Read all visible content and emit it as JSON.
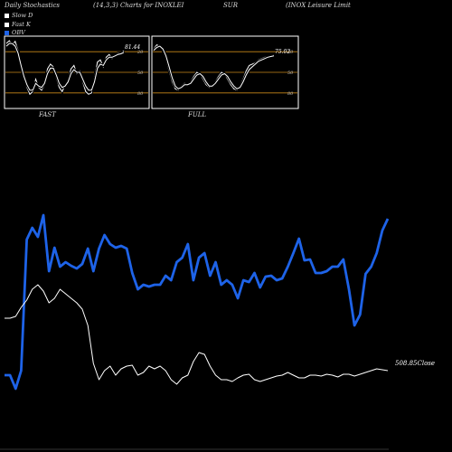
{
  "header": {
    "title": "Daily Stochastics",
    "params": "(14,3,3) Charts for INOXLEI",
    "exchange": "SUR",
    "company": "(INOX  Leisure  Limit"
  },
  "legend": [
    {
      "label": "Slow  D",
      "color": "#ffffff"
    },
    {
      "label": "Fast K",
      "color": "#ffffff"
    },
    {
      "label": "OBV",
      "color": "#1e63e8"
    }
  ],
  "colors": {
    "obv": "#1e63e8",
    "price": "#ffffff",
    "band": "#c8881a",
    "panel_border": "#ffffff"
  },
  "chart_data": [
    {
      "type": "line",
      "title": "FAST",
      "ylim": [
        0,
        100
      ],
      "levels": [
        20,
        50,
        80
      ],
      "tick_labels": [
        "80",
        "50",
        "20"
      ],
      "last_label": "81.44",
      "series": [
        {
          "values": [
            92,
            96,
            90,
            95,
            82,
            62,
            42,
            28,
            18,
            22,
            40,
            28,
            24,
            32,
            55,
            62,
            58,
            42,
            28,
            22,
            32,
            38,
            55,
            60,
            48,
            52,
            36,
            22,
            18,
            20,
            42,
            65,
            68,
            58,
            72,
            76,
            70,
            74,
            78,
            78,
            81.44
          ]
        },
        {
          "values": [
            88,
            92,
            92,
            88,
            78,
            60,
            44,
            32,
            24,
            24,
            34,
            30,
            28,
            34,
            48,
            56,
            56,
            46,
            34,
            28,
            30,
            36,
            48,
            54,
            50,
            50,
            40,
            30,
            24,
            24,
            36,
            56,
            62,
            60,
            68,
            72,
            72,
            74,
            76,
            77,
            79
          ]
        }
      ]
    },
    {
      "type": "line",
      "title": "FULL",
      "ylim": [
        0,
        100
      ],
      "levels": [
        20,
        50,
        80
      ],
      "tick_labels": [
        "80",
        "50",
        "20"
      ],
      "last_label": "75.02",
      "series": [
        {
          "values": [
            84,
            90,
            88,
            82,
            70,
            52,
            36,
            26,
            24,
            30,
            34,
            32,
            36,
            44,
            50,
            48,
            40,
            32,
            28,
            30,
            36,
            44,
            50,
            48,
            40,
            32,
            26,
            24,
            30,
            40,
            52,
            60,
            62,
            64,
            68,
            70,
            72,
            73,
            74,
            75.02
          ]
        },
        {
          "values": [
            82,
            86,
            88,
            84,
            74,
            58,
            42,
            30,
            26,
            28,
            32,
            32,
            34,
            40,
            46,
            48,
            44,
            36,
            30,
            30,
            34,
            40,
            46,
            48,
            44,
            36,
            30,
            26,
            28,
            36,
            46,
            54,
            58,
            62,
            66,
            68,
            70,
            72,
            73,
            74
          ]
        }
      ]
    },
    {
      "type": "line",
      "title": "",
      "price_label": "508.85Close",
      "series": [
        {
          "name": "OBV",
          "values": [
            85,
            85,
            70,
            90,
            235,
            248,
            238,
            262,
            200,
            226,
            205,
            210,
            206,
            203,
            208,
            225,
            200,
            225,
            240,
            230,
            226,
            228,
            225,
            198,
            180,
            185,
            183,
            185,
            185,
            195,
            190,
            210,
            215,
            230,
            190,
            215,
            220,
            195,
            210,
            185,
            190,
            185,
            170,
            190,
            188,
            198,
            182,
            194,
            195,
            190,
            192,
            205,
            220,
            236,
            212,
            213,
            198,
            198,
            200,
            205,
            205,
            213,
            180,
            140,
            152,
            197,
            205,
            220,
            245,
            258
          ]
        },
        {
          "name": "Price",
          "values": [
            148,
            148,
            150,
            160,
            168,
            180,
            185,
            178,
            165,
            170,
            180,
            175,
            170,
            165,
            158,
            140,
            98,
            80,
            90,
            95,
            85,
            92,
            95,
            96,
            85,
            88,
            95,
            92,
            95,
            90,
            80,
            75,
            82,
            85,
            100,
            110,
            108,
            95,
            85,
            80,
            80,
            78,
            82,
            85,
            86,
            80,
            78,
            80,
            82,
            84,
            85,
            88,
            85,
            82,
            82,
            85,
            85,
            84,
            86,
            85,
            83,
            86,
            86,
            84,
            86,
            88,
            90,
            92,
            91,
            90
          ]
        }
      ]
    }
  ]
}
